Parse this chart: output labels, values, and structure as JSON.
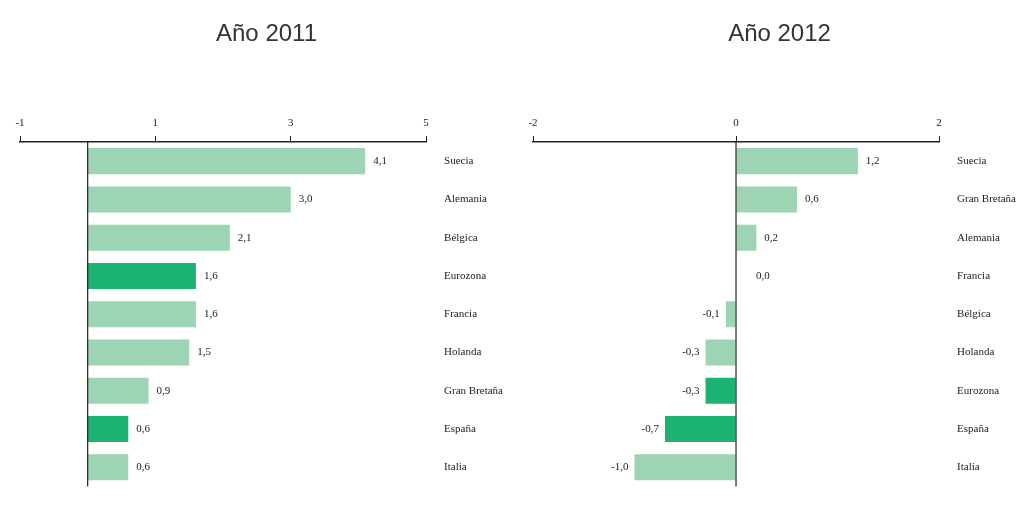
{
  "chart_data": [
    {
      "type": "bar",
      "orientation": "horizontal",
      "title": "Año 2011",
      "categories": [
        "Suecia",
        "Alemania",
        "Bélgica",
        "Eurozona",
        "Francia",
        "Holanda",
        "Gran Bretaña",
        "España",
        "Italia"
      ],
      "values": [
        4.1,
        3.0,
        2.1,
        1.6,
        1.6,
        1.5,
        0.9,
        0.6,
        0.6
      ],
      "value_labels": [
        "4,1",
        "3,0",
        "2,1",
        "1,6",
        "1,6",
        "1,5",
        "0,9",
        "0,6",
        "0,6"
      ],
      "colors": [
        "#9dd4b4",
        "#9dd4b4",
        "#9dd4b4",
        "#1bb273",
        "#9dd4b4",
        "#9dd4b4",
        "#9dd4b4",
        "#1bb273",
        "#9dd4b4"
      ],
      "xlim": [
        -1,
        5
      ],
      "xticks": [
        -1,
        1,
        3,
        5
      ],
      "ref_lines": [
        {
          "axis": "x",
          "value": 0,
          "color": "#222222"
        }
      ],
      "grid": false,
      "legend": false
    },
    {
      "type": "bar",
      "orientation": "horizontal",
      "title": "Año 2012",
      "categories": [
        "Suecia",
        "Gran Bretaña",
        "Alemania",
        "Francia",
        "Bélgica",
        "Holanda",
        "Eurozona",
        "España",
        "Italia"
      ],
      "values": [
        1.2,
        0.6,
        0.2,
        0.0,
        -0.1,
        -0.3,
        -0.3,
        -0.7,
        -1.0
      ],
      "value_labels": [
        "1,2",
        "0,6",
        "0,2",
        "0,0",
        "-0,1",
        "-0,3",
        "-0,3",
        "-0,7",
        "-1,0"
      ],
      "colors": [
        "#9dd4b4",
        "#9dd4b4",
        "#9dd4b4",
        "#9dd4b4",
        "#9dd4b4",
        "#9dd4b4",
        "#1bb273",
        "#1bb273",
        "#9dd4b4"
      ],
      "xlim": [
        -2,
        2
      ],
      "xticks": [
        -2,
        0,
        2
      ],
      "ref_lines": [
        {
          "axis": "x",
          "value": 0,
          "color": "#222222"
        }
      ],
      "grid": false,
      "legend": false
    }
  ]
}
